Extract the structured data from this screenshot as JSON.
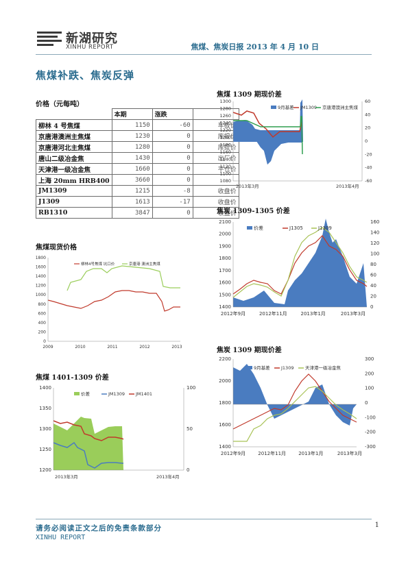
{
  "header": {
    "logo_cn": "新湖研究",
    "logo_en": "XINHU REPORT",
    "report_title": "焦煤、焦炭日报 2013 年 4 月 10 日"
  },
  "headline": "焦煤补跌、焦炭反弹",
  "price_table": {
    "title": "价格（元每吨）",
    "columns": [
      "",
      "本期",
      "涨跌",
      ""
    ],
    "rows": [
      {
        "name": "柳林 4 号焦煤",
        "value": "1150",
        "change": "-60",
        "note": "车板价"
      },
      {
        "name": "京唐港澳洲主焦煤",
        "value": "1230",
        "change": "0",
        "note": "库提价"
      },
      {
        "name": "京唐港河北主焦煤",
        "value": "1280",
        "change": "0",
        "note": "库提价"
      },
      {
        "name": "唐山二级冶金焦",
        "value": "1430",
        "change": "0",
        "note": "出厂价"
      },
      {
        "name": "天津港一级冶金焦",
        "value": "1660",
        "change": "0",
        "note": "平仓价"
      },
      {
        "name": "上海 20mm HRB400",
        "value": "3660",
        "change": "0",
        "note": ""
      },
      {
        "name": "JM1309",
        "value": "1215",
        "change": "-8",
        "note": "收盘价"
      },
      {
        "name": "J1309",
        "value": "1613",
        "change": "-17",
        "note": "收盘价"
      },
      {
        "name": "RB1310",
        "value": "3847",
        "change": "0",
        "note": "收盘价"
      }
    ]
  },
  "colors": {
    "accent": "#2b6c8f",
    "blue_fill": "#4a7cc0",
    "red_line": "#c0392b",
    "green_line": "#2e9e4f",
    "olive_line": "#a8c256",
    "light_green_line": "#9acd5a"
  },
  "charts": {
    "c1": {
      "title": "焦煤 1309 期现价差",
      "legend": [
        "9月基差",
        "JM1309",
        "京唐港澳洲主焦煤"
      ],
      "left_ticks": [
        "1300",
        "1280",
        "1260",
        "1240",
        "1220",
        "1200",
        "1180",
        "1160",
        "1140",
        "1120",
        "1100",
        "1080"
      ],
      "right_ticks": [
        "60",
        "40",
        "20",
        "0",
        "-20",
        "-40",
        "-60"
      ],
      "x_ticks": [
        "2013年3月",
        "2013年4月"
      ]
    },
    "c2": {
      "title": "焦炭 1309-1305 价差",
      "legend": [
        "价差",
        "J1305",
        "J1309"
      ],
      "left_ticks": [
        "2100",
        "2000",
        "1900",
        "1800",
        "1700",
        "1600",
        "1500",
        "1400"
      ],
      "right_ticks": [
        "160",
        "140",
        "120",
        "100",
        "80",
        "60",
        "40",
        "20",
        "0"
      ],
      "x_ticks": [
        "2012年9月",
        "2012年11月",
        "2013年1月",
        "2013年3月"
      ]
    },
    "c3": {
      "title": "焦煤现货价格",
      "legend": [
        "柳林4号焦煤 坑口价",
        "京唐港 澳洲主焦煤"
      ],
      "y_ticks": [
        "1800",
        "1600",
        "1400",
        "1200",
        "1000",
        "800",
        "600",
        "400",
        "200",
        "0"
      ],
      "x_ticks": [
        "2009",
        "2010",
        "2011",
        "2012",
        "2013"
      ]
    },
    "c4": {
      "title": "焦炭 1309 期现价差",
      "legend": [
        "9月基差",
        "J1309",
        "天津港一级冶金焦"
      ],
      "left_ticks": [
        "2200",
        "2000",
        "1800",
        "1600",
        "1400"
      ],
      "right_ticks": [
        "300",
        "200",
        "100",
        "0",
        "-100",
        "-200",
        "-300"
      ],
      "x_ticks": [
        "2012年9月",
        "2012年11月",
        "2013年1月",
        "2013年3月"
      ]
    },
    "c5": {
      "title": "焦煤 1401-1309 价差",
      "legend": [
        "价差",
        "JM1309",
        "JM1401"
      ],
      "left_ticks": [
        "1400",
        "1350",
        "1300",
        "1250",
        "1200"
      ],
      "right_ticks": [
        "100",
        "50",
        "0"
      ],
      "x_ticks": [
        "2013年3月",
        "2013年4月"
      ]
    }
  },
  "footer": {
    "disclaimer": "请务必阅读正文之后的免责条款部分",
    "brand": "XINHU REPORT",
    "page": "1"
  }
}
